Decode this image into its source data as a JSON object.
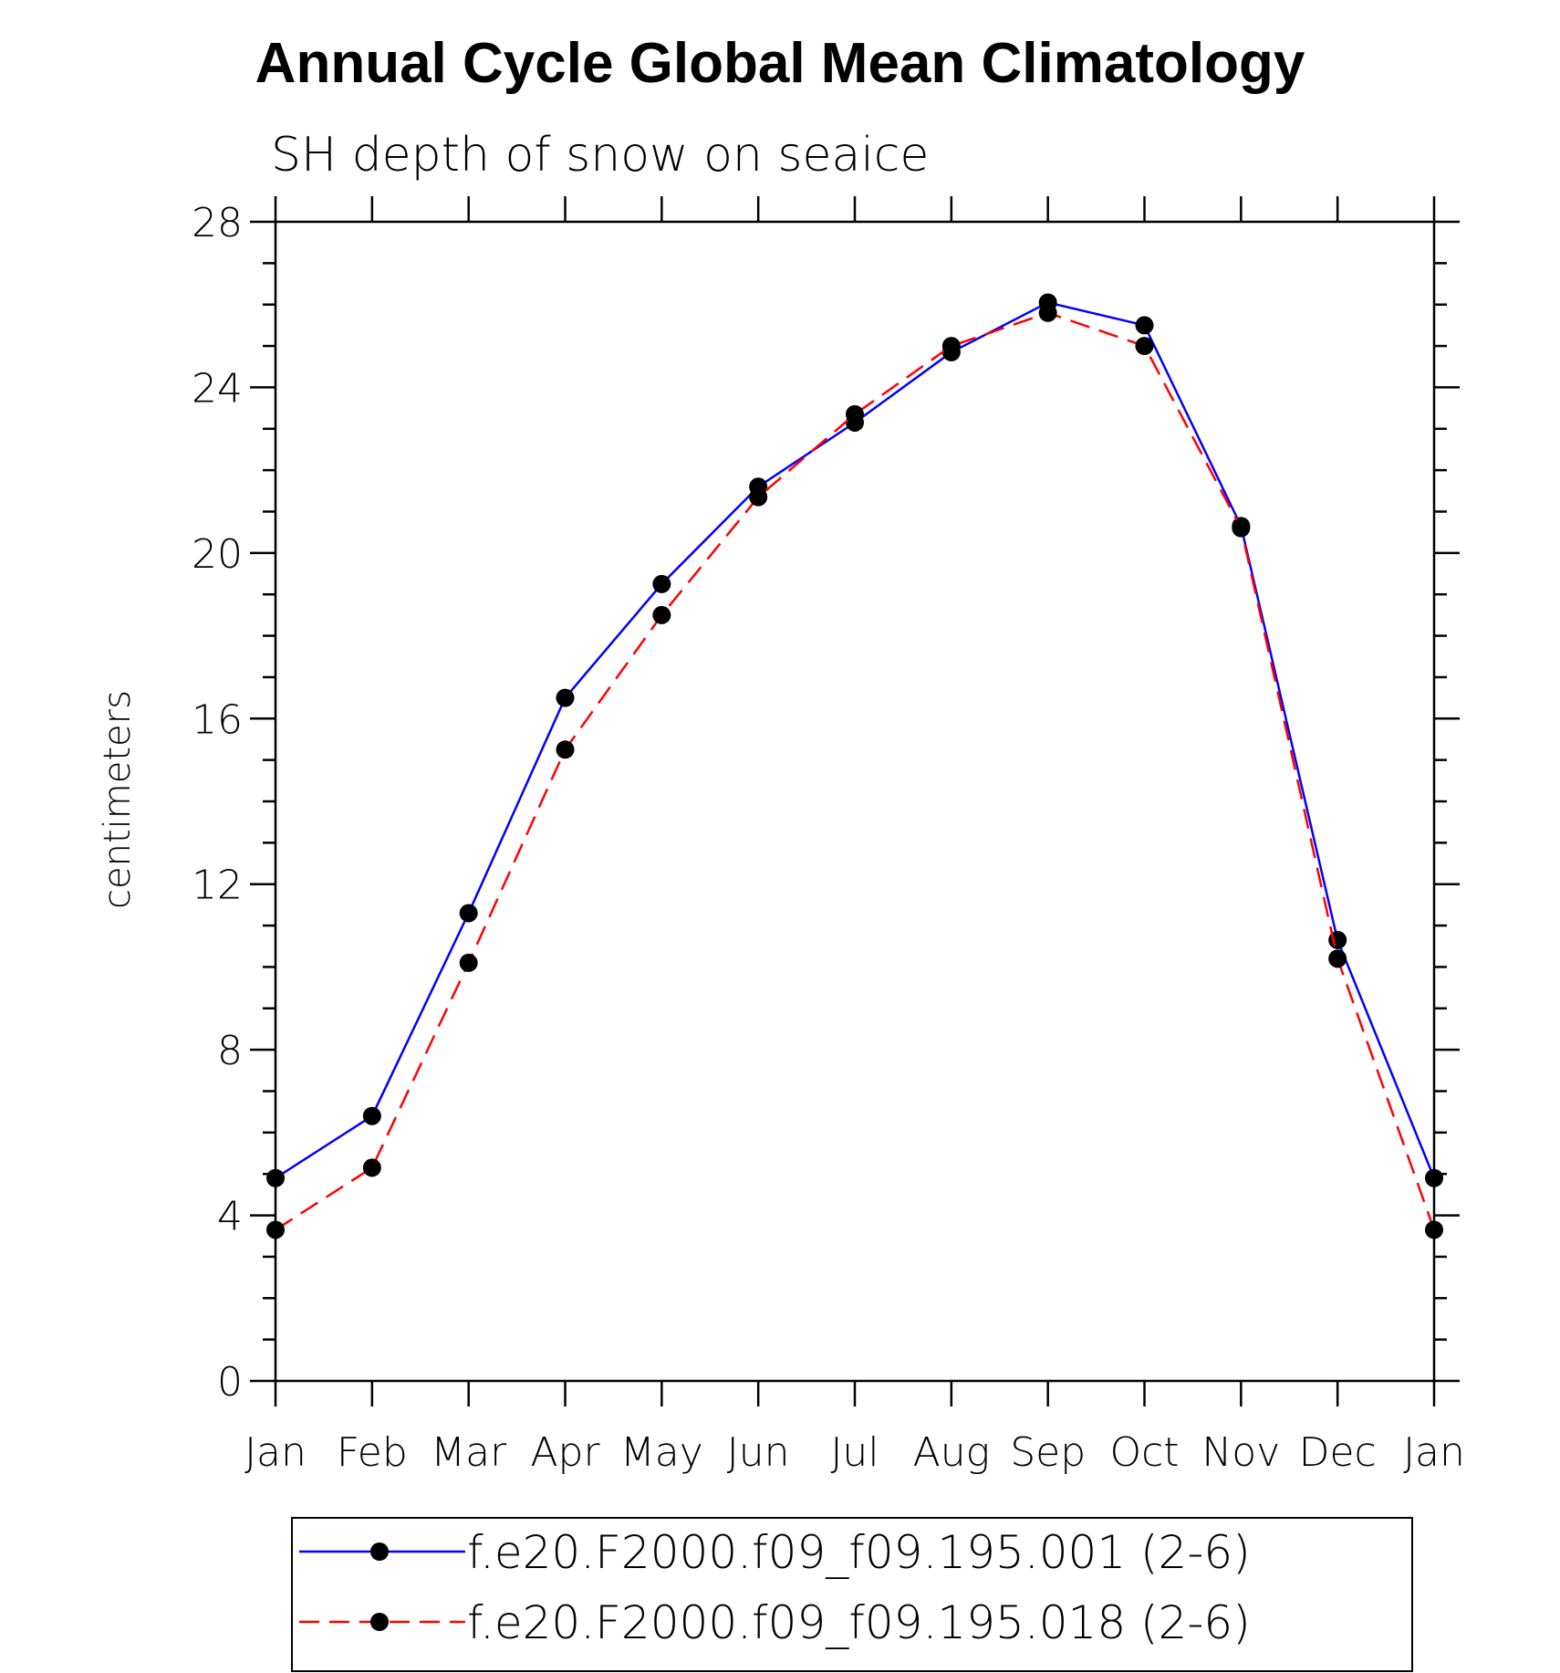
{
  "chart_data": {
    "type": "line",
    "title": "Annual Cycle Global Mean Climatology",
    "subtitle": "SH depth of snow on seaice",
    "xlabel": "",
    "ylabel": "centimeters",
    "categories": [
      "Jan",
      "Feb",
      "Mar",
      "Apr",
      "May",
      "Jun",
      "Jul",
      "Aug",
      "Sep",
      "Oct",
      "Nov",
      "Dec",
      "Jan"
    ],
    "ylim": [
      0,
      28
    ],
    "yticks": [
      0,
      4,
      8,
      12,
      16,
      20,
      24,
      28
    ],
    "y_minor_step": 1,
    "grid": false,
    "legend_position": "bottom",
    "series": [
      {
        "name": "f.e20.F2000.f09_f09.195.001 (2-6)",
        "color": "#0000ff",
        "line_style": "solid",
        "marker": "filled-circle",
        "marker_color": "#000000",
        "values": [
          4.9,
          6.4,
          11.3,
          16.5,
          19.25,
          21.6,
          23.15,
          24.85,
          26.05,
          25.5,
          20.65,
          10.65,
          4.9
        ]
      },
      {
        "name": "f.e20.F2000.f09_f09.195.018 (2-6)",
        "color": "#ff0000",
        "line_style": "dashed",
        "marker": "filled-circle",
        "marker_color": "#000000",
        "values": [
          3.65,
          5.15,
          10.1,
          15.25,
          18.5,
          21.35,
          23.35,
          25.0,
          25.8,
          25.0,
          20.6,
          10.2,
          3.65
        ]
      }
    ]
  }
}
